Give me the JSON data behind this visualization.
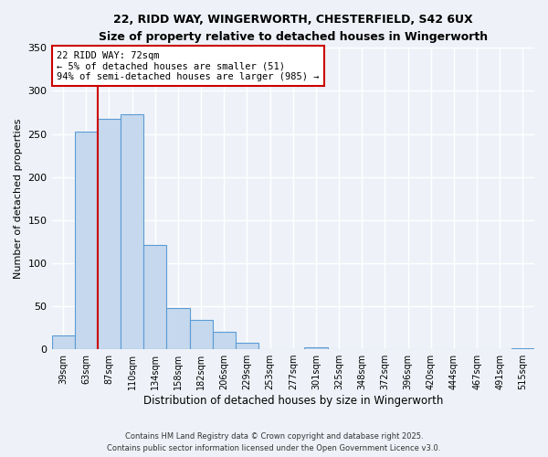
{
  "title1": "22, RIDD WAY, WINGERWORTH, CHESTERFIELD, S42 6UX",
  "title2": "Size of property relative to detached houses in Wingerworth",
  "xlabel": "Distribution of detached houses by size in Wingerworth",
  "ylabel": "Number of detached properties",
  "bin_labels": [
    "39sqm",
    "63sqm",
    "87sqm",
    "110sqm",
    "134sqm",
    "158sqm",
    "182sqm",
    "206sqm",
    "229sqm",
    "253sqm",
    "277sqm",
    "301sqm",
    "325sqm",
    "348sqm",
    "372sqm",
    "396sqm",
    "420sqm",
    "444sqm",
    "467sqm",
    "491sqm",
    "515sqm"
  ],
  "bar_heights": [
    16,
    253,
    268,
    273,
    121,
    48,
    34,
    20,
    8,
    0,
    0,
    2,
    0,
    0,
    0,
    0,
    0,
    0,
    0,
    0,
    1
  ],
  "bar_color": "#c5d8ed",
  "bar_edge_color": "#5b9bd5",
  "vline_x": 1.5,
  "vline_color": "#cc0000",
  "annotation_title": "22 RIDD WAY: 72sqm",
  "annotation_line1": "← 5% of detached houses are smaller (51)",
  "annotation_line2": "94% of semi-detached houses are larger (985) →",
  "annotation_box_color": "#cc0000",
  "ylim": [
    0,
    350
  ],
  "yticks": [
    0,
    50,
    100,
    150,
    200,
    250,
    300,
    350
  ],
  "footer1": "Contains HM Land Registry data © Crown copyright and database right 2025.",
  "footer2": "Contains public sector information licensed under the Open Government Licence v3.0.",
  "bg_color": "#eef2f8",
  "grid_color": "#ffffff"
}
